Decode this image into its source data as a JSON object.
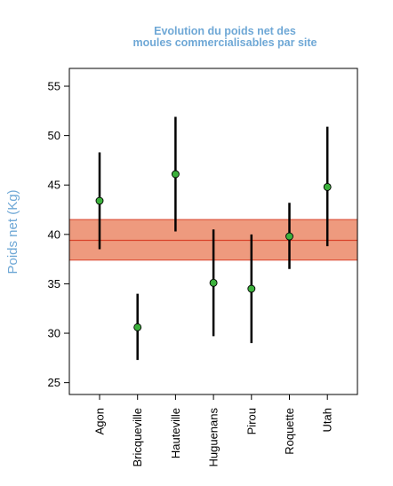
{
  "chart_data": {
    "type": "scatter",
    "title_lines": [
      "Evolution du poids net des",
      "moules commercialisables par site"
    ],
    "xlabel": "",
    "ylabel": "Poids net (Kg)",
    "ylim": [
      23.8,
      56.8
    ],
    "yticks": [
      25,
      30,
      35,
      40,
      45,
      50,
      55
    ],
    "categories": [
      "Agon",
      "Bricqueville",
      "Hauteville",
      "Huguenans",
      "Pirou",
      "Roquette",
      "Utah"
    ],
    "values": [
      43.4,
      30.6,
      46.1,
      35.1,
      34.5,
      39.8,
      44.8
    ],
    "lower": [
      38.5,
      27.3,
      40.3,
      29.7,
      29.0,
      36.5,
      38.8
    ],
    "upper": [
      48.3,
      34.0,
      51.9,
      40.5,
      40.0,
      43.2,
      50.9
    ],
    "reference_line": 39.4,
    "reference_band": [
      37.4,
      41.5
    ],
    "grid": false,
    "colors": {
      "title": "#6fa8d6",
      "band_fill": "#ee9a7e",
      "band_edge": "#d9432b",
      "point_fill": "#3cb13c",
      "error_bar": "#000000"
    }
  }
}
